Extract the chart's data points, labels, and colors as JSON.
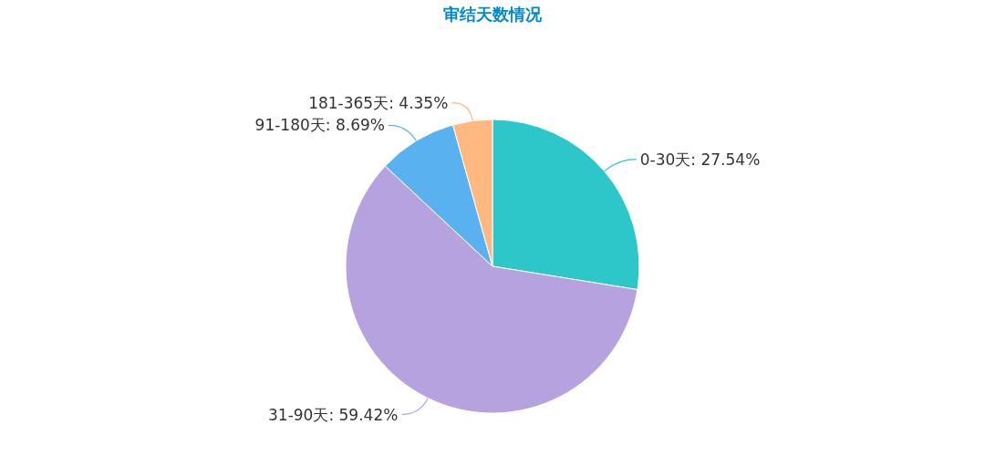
{
  "chart_data": {
    "type": "pie",
    "title": "审结天数情况",
    "categories": [
      "0-30天",
      "31-90天",
      "91-180天",
      "181-365天"
    ],
    "values": [
      27.54,
      59.42,
      8.69,
      4.35
    ],
    "colors": [
      "#2ec7c9",
      "#b6a2de",
      "#5ab1ef",
      "#ffb980"
    ],
    "value_labels": [
      "27.54%",
      "59.42%",
      "8.69%",
      "4.35%"
    ]
  }
}
